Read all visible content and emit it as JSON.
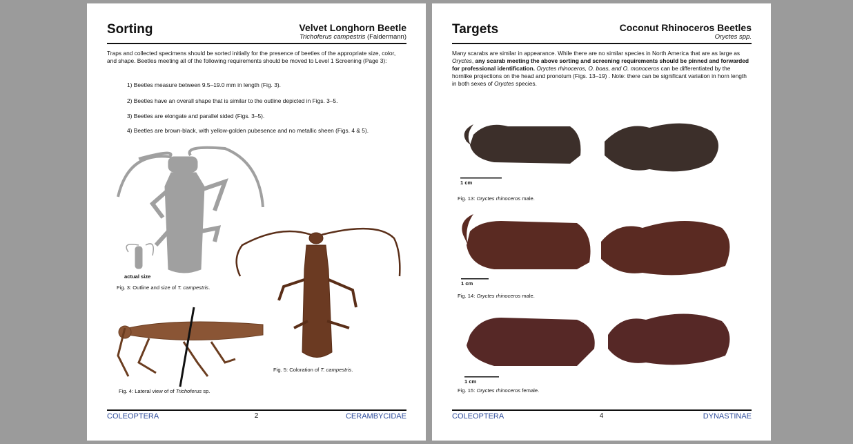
{
  "pages": [
    {
      "heading": "Sorting",
      "title": "Velvet Longhorn Beetle",
      "subtitle": [
        {
          "text": "Trichoferus campestris",
          "em": true
        },
        {
          "text": " (Faldermann)"
        }
      ],
      "intro": [
        {
          "text": "Traps and collected specimens should be sorted initially for the presence of beetles of the appropriate size, color, and shape. Beetles meeting all of the following requirements should be moved to Level 1 Screening (Page 3):"
        }
      ],
      "list": [
        "1) Beetles measure between 9.5–19.0 mm in length (Fig. 3).",
        "2) Beetles have an overall shape that is similar to the outline depicted in Figs. 3–5.",
        "3) Beetles are elongate and parallel sided (Figs. 3–5).",
        "4) Beetles are brown-black, with yellow-golden pubesence and no metallic sheen (Figs. 4 & 5)."
      ],
      "labels": [
        "actual size"
      ],
      "figures": [
        [
          {
            "text": "Fig. 3: Outline and size of "
          },
          {
            "text": "T. campestris",
            "em": true
          },
          {
            "text": "."
          }
        ],
        [
          {
            "text": "Fig. 4: Lateral view of of "
          },
          {
            "text": "Trichoferus",
            "em": true
          },
          {
            "text": " sp."
          }
        ],
        [
          {
            "text": "Fig. 5: Coloration of "
          },
          {
            "text": "T. campestris",
            "em": true
          },
          {
            "text": "."
          }
        ]
      ],
      "footer": {
        "left": "COLEOPTERA",
        "page": 2,
        "right": "CERAMBYCIDAE"
      }
    },
    {
      "heading": "Targets",
      "title": "Coconut Rhinoceros Beetles",
      "subtitle": [
        {
          "text": "Oryctes spp.",
          "em": true
        }
      ],
      "intro": [
        {
          "text": "Many scarabs are similar in appearance. While there are no similar species in North America that are as large as "
        },
        {
          "text": "Oryctes",
          "em": true
        },
        {
          "text": ", "
        },
        {
          "text": "any scarab meeting the above sorting and screening requirements should be pinned and forwarded for professional identification.",
          "b": true
        },
        {
          "text": " "
        },
        {
          "text": "Oryctes rhinoceros, O. boas, and O. monoceros",
          "em": true
        },
        {
          "text": " can be differentiated by the hornlike projections on the head and pronotum (Figs. 13–19) . Note: there can be significant variation in horn length in both sexes of "
        },
        {
          "text": "Oryctes",
          "em": true
        },
        {
          "text": " species."
        }
      ],
      "list": [],
      "labels": [
        "1 cm",
        "1 cm",
        "1 cm"
      ],
      "figures": [
        [
          {
            "text": "Fig. 13: "
          },
          {
            "text": "Oryctes rhinoceros",
            "em": true
          },
          {
            "text": " male."
          }
        ],
        [
          {
            "text": "Fig. 14: "
          },
          {
            "text": "Oryctes rhinoceros",
            "em": true
          },
          {
            "text": " male."
          }
        ],
        [
          {
            "text": "Fig. 15: "
          },
          {
            "text": "Oryctes rhinoceros",
            "em": true
          },
          {
            "text": " female."
          }
        ]
      ],
      "footer": {
        "left": "COLEOPTERA",
        "page": 4,
        "right": "DYNASTINAE"
      }
    }
  ]
}
